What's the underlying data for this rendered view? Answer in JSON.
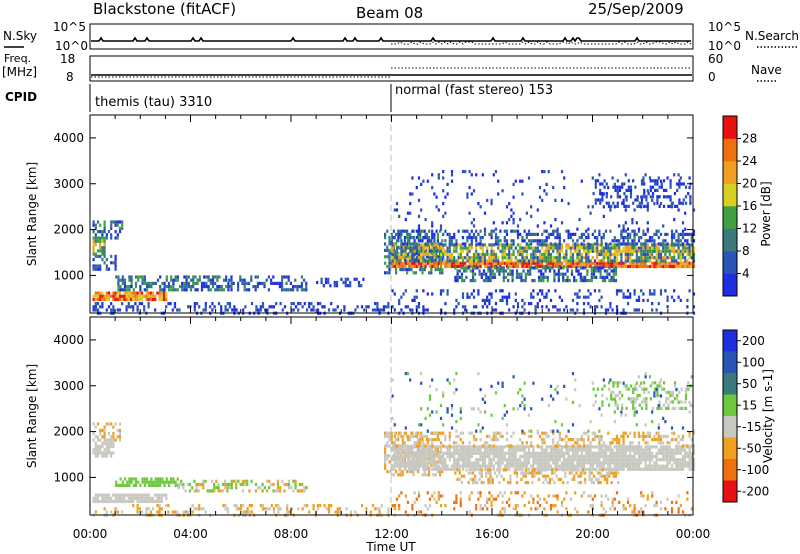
{
  "header": {
    "station": "Blackstone (fitACF)",
    "beam": "Beam 08",
    "date": "25/Sep/2009"
  },
  "summary_panel": {
    "nsky_label": "N.Sky",
    "nsky_ticks": [
      "10^5",
      "10^0"
    ],
    "nsearch_label": "N.Search",
    "nsearch_ticks": [
      "10^5",
      "10^0"
    ],
    "freq_label_1": "Freq.",
    "freq_label_2": "[MHz]",
    "freq_ticks": [
      "18",
      "8"
    ],
    "nave_label": "Nave",
    "nave_ticks": [
      "60",
      "0"
    ],
    "cpid_label": "CPID",
    "cpid_segments": [
      {
        "label": "themis (tau) 3310",
        "start_hour": 0
      },
      {
        "label": "normal (fast stereo) 153",
        "start_hour": 12
      }
    ]
  },
  "chart_data": [
    {
      "type": "heatmap",
      "quantity": "Power",
      "ylabel": "Slant Range [km]",
      "ylim": [
        180,
        4500
      ],
      "yticks": [
        "1000",
        "2000",
        "3000",
        "4000"
      ],
      "ytick_values": [
        1000,
        2000,
        3000,
        4000
      ],
      "xlim_hours": [
        0,
        24
      ],
      "colorbar_label": "Power [dB]",
      "colorbar_ticks": [
        "4",
        "8",
        "12",
        "16",
        "20",
        "24",
        "28"
      ],
      "colorbar_colors": [
        "#1f2ee0",
        "#2a55b8",
        "#3a7a7a",
        "#3fa040",
        "#d8d020",
        "#f0a020",
        "#f07010",
        "#e81010"
      ],
      "bands": [
        {
          "x0": 0.1,
          "x1": 0.6,
          "y0": 1450,
          "y1": 1850,
          "density": 0.8,
          "levels": [
            2,
            3,
            4,
            5
          ]
        },
        {
          "x0": 0.1,
          "x1": 1.3,
          "y0": 1850,
          "y1": 2200,
          "density": 0.5,
          "levels": [
            0,
            1,
            2,
            3
          ]
        },
        {
          "x0": 0.1,
          "x1": 1.0,
          "y0": 1150,
          "y1": 1450,
          "density": 0.5,
          "levels": [
            0,
            1,
            2
          ]
        },
        {
          "x0": 0.1,
          "x1": 3.0,
          "y0": 480,
          "y1": 650,
          "density": 0.9,
          "levels": [
            4,
            5,
            6,
            7
          ]
        },
        {
          "x0": 1.0,
          "x1": 5.5,
          "y0": 700,
          "y1": 1000,
          "density": 0.55,
          "levels": [
            0,
            1,
            2,
            3
          ]
        },
        {
          "x0": 5.5,
          "x1": 8.6,
          "y0": 700,
          "y1": 1000,
          "density": 0.45,
          "levels": [
            0,
            1,
            2
          ]
        },
        {
          "x0": 9.0,
          "x1": 11.0,
          "y0": 750,
          "y1": 950,
          "density": 0.35,
          "levels": [
            0,
            1
          ]
        },
        {
          "x0": 0.1,
          "x1": 11.9,
          "y0": 200,
          "y1": 420,
          "density": 0.3,
          "levels": [
            0,
            1
          ]
        },
        {
          "x0": 11.7,
          "x1": 14.0,
          "y0": 1050,
          "y1": 2000,
          "density": 0.55,
          "levels": [
            0,
            1,
            2,
            3
          ]
        },
        {
          "x0": 12.0,
          "x1": 24.0,
          "y0": 1200,
          "y1": 1300,
          "density": 0.95,
          "levels": [
            5,
            6,
            7
          ]
        },
        {
          "x0": 12.0,
          "x1": 24.0,
          "y0": 1300,
          "y1": 1700,
          "density": 0.8,
          "levels": [
            1,
            2,
            3,
            4,
            5
          ]
        },
        {
          "x0": 12.0,
          "x1": 24.0,
          "y0": 1700,
          "y1": 2000,
          "density": 0.45,
          "levels": [
            0,
            1,
            2
          ]
        },
        {
          "x0": 14.5,
          "x1": 21.0,
          "y0": 900,
          "y1": 1200,
          "density": 0.55,
          "levels": [
            0,
            1,
            2,
            3
          ]
        },
        {
          "x0": 12.0,
          "x1": 24.0,
          "y0": 200,
          "y1": 700,
          "density": 0.22,
          "levels": [
            0,
            1
          ]
        },
        {
          "x0": 20.0,
          "x1": 23.9,
          "y0": 2500,
          "y1": 3100,
          "density": 0.35,
          "levels": [
            0,
            1
          ]
        },
        {
          "x0": 12.0,
          "x1": 24.0,
          "y0": 2000,
          "y1": 3300,
          "density": 0.06,
          "levels": [
            0,
            1
          ]
        }
      ]
    },
    {
      "type": "heatmap",
      "quantity": "Velocity",
      "ylabel": "Slant Range [km]",
      "ylim": [
        180,
        4500
      ],
      "yticks": [
        "1000",
        "2000",
        "3000",
        "4000"
      ],
      "ytick_values": [
        1000,
        2000,
        3000,
        4000
      ],
      "xlim_hours": [
        0,
        24
      ],
      "xticks": [
        "00:00",
        "04:00",
        "08:00",
        "12:00",
        "16:00",
        "20:00",
        "00:00"
      ],
      "xlabel": "Time UT",
      "colorbar_label": "Velocity [m s-1]",
      "colorbar_ticks": [
        "200",
        "100",
        "50",
        "15",
        "-15",
        "-50",
        "-100",
        "-200"
      ],
      "colorbar_colors": [
        "#1f2ee0",
        "#2a55b8",
        "#3a7a7a",
        "#6cc83c",
        "#c8c8c0",
        "#f0a020",
        "#f07010",
        "#e81010"
      ],
      "bands": [
        {
          "x0": 0.1,
          "x1": 0.9,
          "y0": 1450,
          "y1": 1850,
          "density": 0.85,
          "levels": [
            4
          ]
        },
        {
          "x0": 0.1,
          "x1": 1.2,
          "y0": 1850,
          "y1": 2200,
          "density": 0.4,
          "levels": [
            4,
            5
          ]
        },
        {
          "x0": 0.1,
          "x1": 3.0,
          "y0": 450,
          "y1": 650,
          "density": 0.85,
          "levels": [
            4
          ]
        },
        {
          "x0": 1.0,
          "x1": 3.5,
          "y0": 800,
          "y1": 1000,
          "density": 0.75,
          "levels": [
            3
          ]
        },
        {
          "x0": 3.5,
          "x1": 8.6,
          "y0": 700,
          "y1": 950,
          "density": 0.45,
          "levels": [
            4,
            5,
            3
          ]
        },
        {
          "x0": 0.1,
          "x1": 11.9,
          "y0": 200,
          "y1": 420,
          "density": 0.3,
          "levels": [
            5,
            4
          ]
        },
        {
          "x0": 11.7,
          "x1": 14.0,
          "y0": 1050,
          "y1": 2000,
          "density": 0.55,
          "levels": [
            4,
            5
          ]
        },
        {
          "x0": 12.0,
          "x1": 24.0,
          "y0": 1200,
          "y1": 1700,
          "density": 0.85,
          "levels": [
            4
          ]
        },
        {
          "x0": 12.0,
          "x1": 24.0,
          "y0": 1700,
          "y1": 2000,
          "density": 0.35,
          "levels": [
            4,
            5
          ]
        },
        {
          "x0": 14.5,
          "x1": 21.0,
          "y0": 900,
          "y1": 1200,
          "density": 0.4,
          "levels": [
            4,
            5
          ]
        },
        {
          "x0": 12.0,
          "x1": 24.0,
          "y0": 200,
          "y1": 700,
          "density": 0.2,
          "levels": [
            5,
            4,
            6
          ]
        },
        {
          "x0": 20.0,
          "x1": 23.9,
          "y0": 2500,
          "y1": 3100,
          "density": 0.35,
          "levels": [
            4,
            3
          ]
        },
        {
          "x0": 12.0,
          "x1": 24.0,
          "y0": 2000,
          "y1": 3300,
          "density": 0.05,
          "levels": [
            3,
            4,
            1
          ]
        }
      ]
    }
  ]
}
